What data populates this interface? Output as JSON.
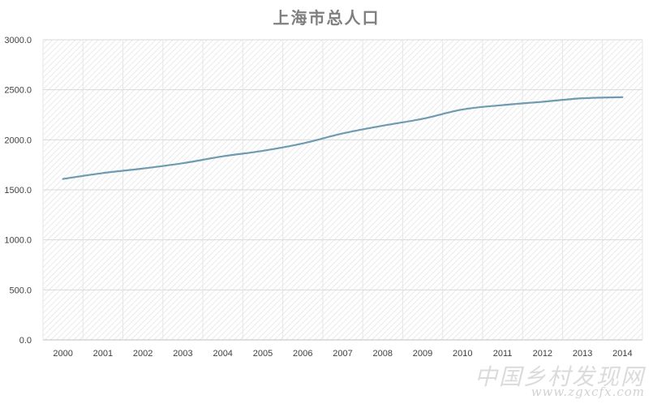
{
  "chart_data": {
    "type": "line",
    "title": "上海市总人口",
    "xlabel": "",
    "ylabel": "",
    "categories": [
      "2000",
      "2001",
      "2002",
      "2003",
      "2004",
      "2005",
      "2006",
      "2007",
      "2008",
      "2009",
      "2010",
      "2011",
      "2012",
      "2013",
      "2014"
    ],
    "series": [
      {
        "values": [
          1609,
          1668,
          1713,
          1766,
          1835,
          1890,
          1964,
          2064,
          2141,
          2210,
          2303,
          2347,
          2380,
          2415,
          2426
        ],
        "color": "#6f9aaf"
      }
    ],
    "ylim": [
      0,
      3000
    ],
    "yticks": [
      "0.0",
      "500.0",
      "1000.0",
      "1500.0",
      "2000.0",
      "2500.0",
      "3000.0"
    ],
    "grid": true,
    "legend": "none"
  },
  "watermark": {
    "cn": "中国乡村发现网",
    "url": "www.zgxcfx.com"
  }
}
